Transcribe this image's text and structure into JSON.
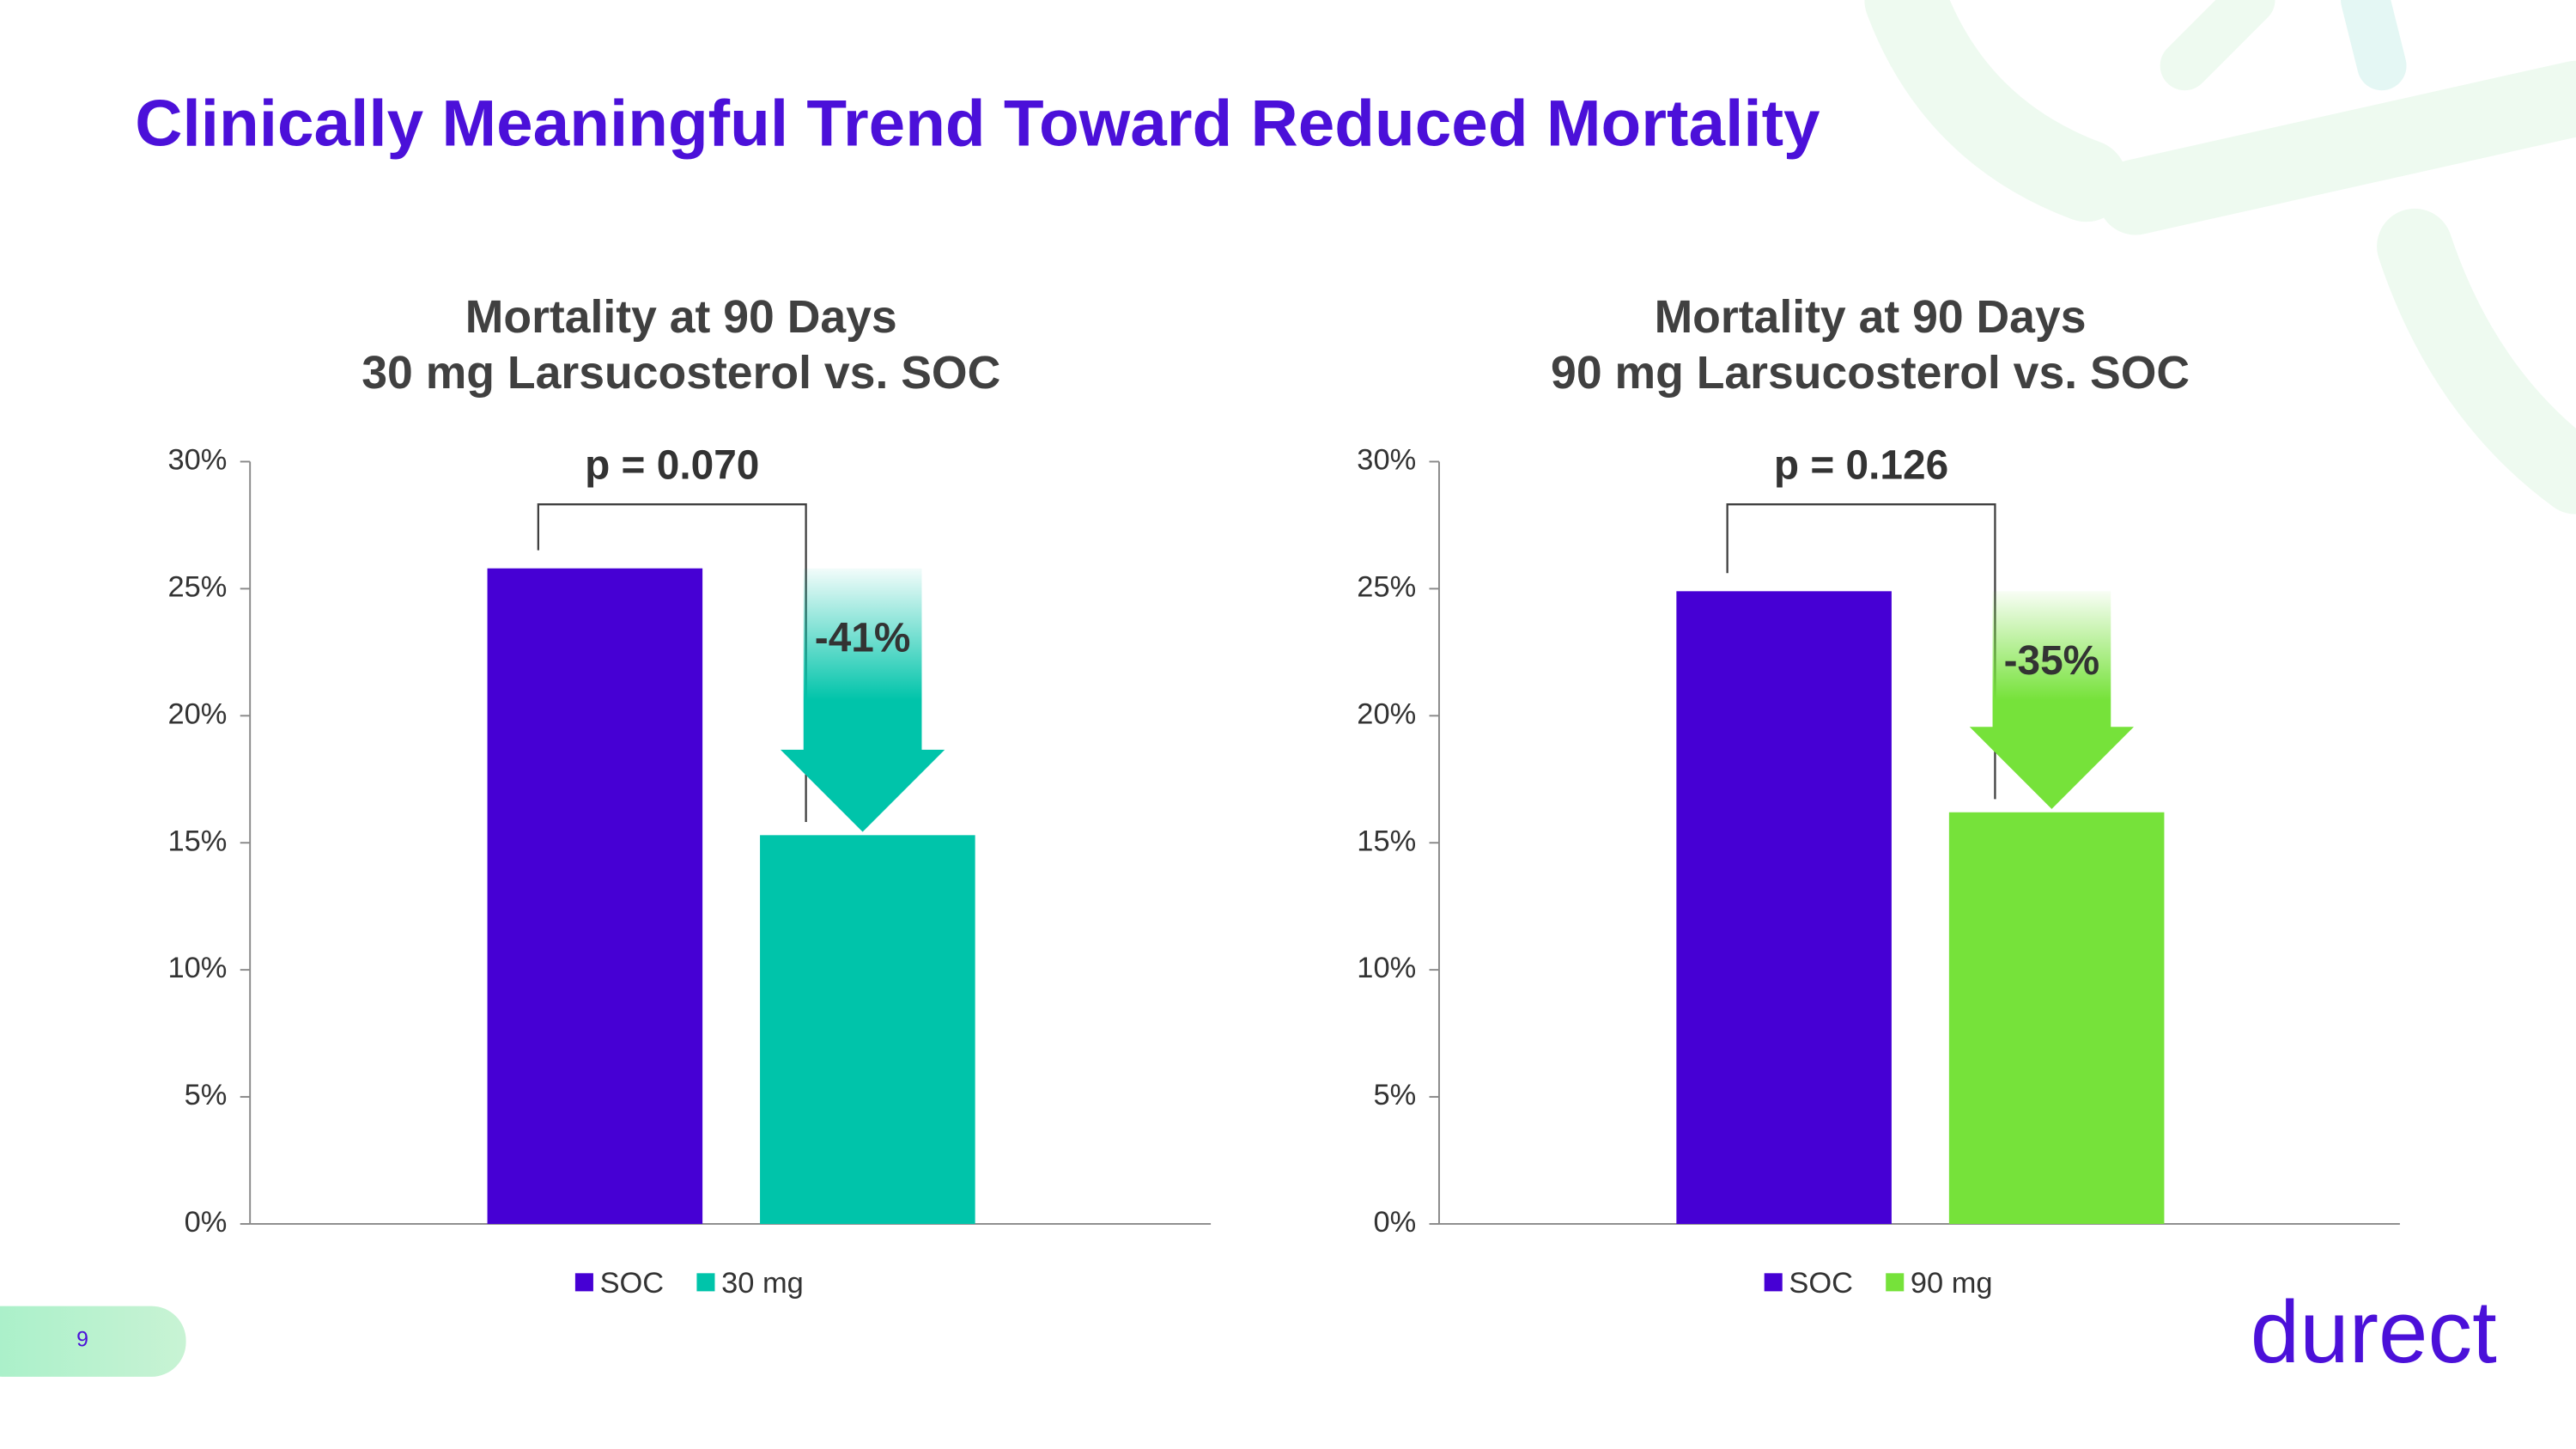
{
  "title": "Clinically Meaningful Trend Toward Reduced Mortality",
  "page_number": "9",
  "logo": "durect",
  "chart_data": [
    {
      "type": "bar",
      "title": "Mortality at 90 Days",
      "subtitle": "30 mg Larsucosterol vs. SOC",
      "categories": [
        null
      ],
      "series": [
        {
          "name": "SOC",
          "color": "#4600d4",
          "values": [
            25.8
          ]
        },
        {
          "name": "30 mg",
          "color": "#00c4aa",
          "values": [
            15.3
          ]
        }
      ],
      "ylim": [
        0,
        30
      ],
      "yticks": [
        {
          "value": 0,
          "label": "0%"
        },
        {
          "value": 5,
          "label": "5%"
        },
        {
          "value": 10,
          "label": "10%"
        },
        {
          "value": 15,
          "label": "15%"
        },
        {
          "value": 20,
          "label": "20%"
        },
        {
          "value": 25,
          "label": "25%"
        },
        {
          "value": 30,
          "label": "30%"
        }
      ],
      "annotations": {
        "p_value": "p = 0.070",
        "change": "-41%"
      },
      "grid": false,
      "legend": "bottom"
    },
    {
      "type": "bar",
      "title": "Mortality at 90 Days",
      "subtitle": "90 mg Larsucosterol vs. SOC",
      "categories": [
        null
      ],
      "series": [
        {
          "name": "SOC",
          "color": "#4600d4",
          "values": [
            24.9
          ]
        },
        {
          "name": "90 mg",
          "color": "#76e23a",
          "values": [
            16.2
          ]
        }
      ],
      "ylim": [
        0,
        30
      ],
      "yticks": [
        {
          "value": 0,
          "label": "0%"
        },
        {
          "value": 5,
          "label": "5%"
        },
        {
          "value": 10,
          "label": "10%"
        },
        {
          "value": 15,
          "label": "15%"
        },
        {
          "value": 20,
          "label": "20%"
        },
        {
          "value": 25,
          "label": "25%"
        },
        {
          "value": 30,
          "label": "30%"
        }
      ],
      "annotations": {
        "p_value": "p = 0.126",
        "change": "-35%"
      },
      "grid": false,
      "legend": "bottom"
    }
  ]
}
